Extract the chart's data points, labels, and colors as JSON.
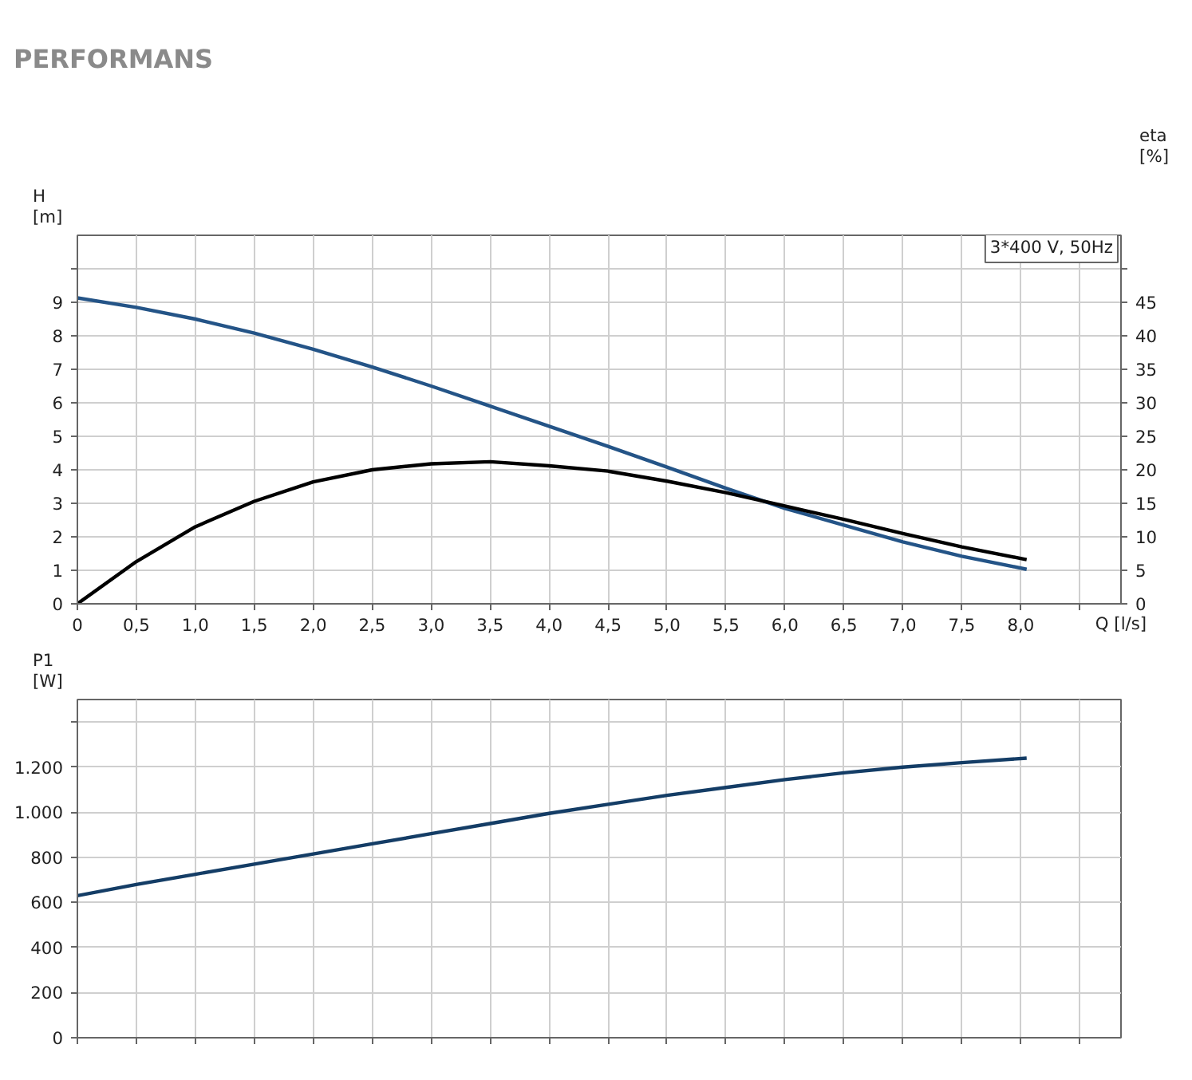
{
  "chart_data": [
    {
      "type": "line",
      "title": "PERFORMANS",
      "ylabel": "H\n[m]",
      "y2label": "eta\n[%]",
      "xlabel": "Q [l/s]",
      "annotations": [
        "3*400 V, 50Hz"
      ],
      "xlim": [
        0,
        8.85
      ],
      "xticks": [
        0,
        {
          "value": 0.5,
          "label": "0,5"
        },
        {
          "value": 1.0,
          "label": "1,0"
        },
        {
          "value": 1.5,
          "label": "1,5"
        },
        {
          "value": 2.0,
          "label": "2,0"
        },
        {
          "value": 2.5,
          "label": "2,5"
        },
        {
          "value": 3.0,
          "label": "3,0"
        },
        {
          "value": 3.5,
          "label": "3,5"
        },
        {
          "value": 4.0,
          "label": "4,0"
        },
        {
          "value": 4.5,
          "label": "4,5"
        },
        {
          "value": 5.0,
          "label": "5,0"
        },
        {
          "value": 5.5,
          "label": "5,5"
        },
        {
          "value": 6.0,
          "label": "6,0"
        },
        {
          "value": 6.5,
          "label": "6,5"
        },
        {
          "value": 7.0,
          "label": "7,0"
        },
        {
          "value": 7.5,
          "label": "7,5"
        },
        {
          "value": 8.0,
          "label": "8,0"
        },
        {
          "value": 8.5,
          "label": null
        }
      ],
      "ylim": [
        0,
        11
      ],
      "yticks": [
        0,
        1,
        2,
        3,
        4,
        5,
        6,
        7,
        8,
        9,
        {
          "value": 10,
          "label": null
        }
      ],
      "y2lim": [
        0,
        55
      ],
      "y2ticks": [
        0,
        5,
        10,
        15,
        20,
        25,
        30,
        35,
        40,
        45,
        {
          "value": 50,
          "label": null
        }
      ],
      "grid": true,
      "line_style": "solid",
      "series": [
        {
          "color": "#245487",
          "x": [
            0,
            0.5,
            1.0,
            1.5,
            2.0,
            2.5,
            3.0,
            3.5,
            4.0,
            4.5,
            5.0,
            5.5,
            6.0,
            6.5,
            7.0,
            7.5,
            8.05
          ],
          "values": [
            9.13,
            8.85,
            8.5,
            8.08,
            7.6,
            7.07,
            6.5,
            5.9,
            5.3,
            4.7,
            4.08,
            3.45,
            2.85,
            2.35,
            1.85,
            1.42,
            1.03
          ]
        },
        {
          "color": "#000000",
          "axis": "y2",
          "x": [
            0,
            0.5,
            1.0,
            1.5,
            2.0,
            2.5,
            3.0,
            3.5,
            4.0,
            4.5,
            5.0,
            5.5,
            6.0,
            6.5,
            7.0,
            7.5,
            8.05
          ],
          "values": [
            0,
            6.3,
            11.5,
            15.3,
            18.2,
            20.0,
            20.9,
            21.2,
            20.6,
            19.8,
            18.3,
            16.6,
            14.6,
            12.6,
            10.5,
            8.5,
            6.6
          ]
        }
      ]
    },
    {
      "type": "line",
      "ylabel": "P1\n[W]",
      "xlim": [
        0,
        8.85
      ],
      "xticks": [
        0,
        0.5,
        1.0,
        1.5,
        2.0,
        2.5,
        3.0,
        3.5,
        4.0,
        4.5,
        5.0,
        5.5,
        6.0,
        6.5,
        7.0,
        7.5,
        8.0,
        8.5
      ],
      "ylim": [
        0,
        1500
      ],
      "yticks": [
        0,
        200,
        400,
        600,
        800,
        {
          "value": 1000,
          "label": "1.000"
        },
        {
          "value": 1200,
          "label": "1.200"
        },
        {
          "value": 1400,
          "label": null
        }
      ],
      "tick_labels": "y",
      "grid": true,
      "line_style": "solid",
      "series": [
        {
          "color": "#143d66",
          "x": [
            0,
            0.5,
            1.0,
            1.5,
            2.0,
            2.5,
            3.0,
            3.5,
            4.0,
            4.5,
            5.0,
            5.5,
            6.0,
            6.5,
            7.0,
            7.5,
            8.05
          ],
          "values": [
            630,
            680,
            725,
            770,
            815,
            860,
            905,
            950,
            995,
            1035,
            1075,
            1110,
            1145,
            1175,
            1200,
            1220,
            1240
          ]
        }
      ]
    }
  ]
}
